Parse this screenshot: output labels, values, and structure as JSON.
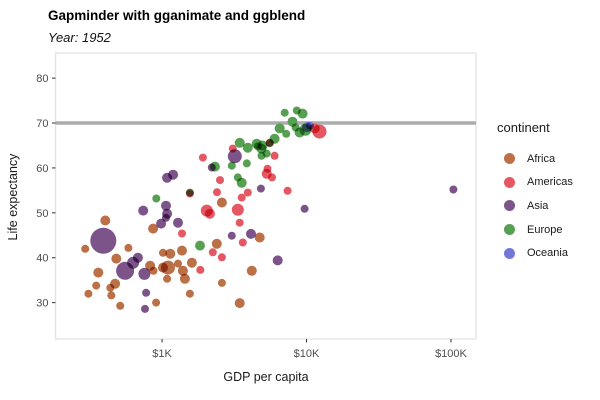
{
  "title": "Gapminder with gganimate and ggblend",
  "subtitle": "Year: 1952",
  "colors": {
    "africa": "#BC7048",
    "americas": "#E45763",
    "asia": "#7C548A",
    "europe": "#57A052",
    "oceania": "#7277D8",
    "reference_line": "#ACACAC",
    "panel_border": "#E2E2E2",
    "tick_mark": "#333333",
    "tick_label": "#4D4D4D"
  },
  "chart_data": {
    "type": "scatter",
    "title": "Gapminder with gganimate and ggblend",
    "subtitle": "Year: 1952",
    "xlabel": "GDP per capita",
    "ylabel": "Life expectancy",
    "x_scale": "log10",
    "xlim": [
      183,
      149000
    ],
    "ylim": [
      21.9,
      85.6
    ],
    "x_ticks": [
      {
        "value": 1000,
        "label": "$1K"
      },
      {
        "value": 10000,
        "label": "$10K"
      },
      {
        "value": 100000,
        "label": "$100K"
      }
    ],
    "y_ticks": [
      30,
      40,
      50,
      60,
      70,
      80
    ],
    "reference_line_y": 70,
    "grid": false,
    "point_blend": "multiply",
    "legend": {
      "title": "continent",
      "position": "right",
      "items": [
        {
          "label": "Africa",
          "color": "#BC7048"
        },
        {
          "label": "Americas",
          "color": "#E45763"
        },
        {
          "label": "Asia",
          "color": "#7C548A"
        },
        {
          "label": "Europe",
          "color": "#57A052"
        },
        {
          "label": "Oceania",
          "color": "#7277D8"
        }
      ]
    },
    "series": [
      {
        "name": "Africa",
        "color": "#BC7048",
        "points": [
          [
            405,
            48.3,
            5
          ],
          [
            294,
            42,
            4
          ],
          [
            362,
            36.7,
            5
          ],
          [
            482,
            39.8,
            5
          ],
          [
            585,
            42.2,
            4
          ],
          [
            826,
            38.2,
            5
          ],
          [
            872,
            37.1,
            4
          ],
          [
            1016,
            37.8,
            5
          ],
          [
            350,
            33.8,
            4
          ],
          [
            473,
            34.2,
            5
          ],
          [
            445,
            31.6,
            4
          ],
          [
            513,
            29.3,
            4
          ],
          [
            910,
            30,
            4
          ],
          [
            309,
            32,
            4
          ],
          [
            867,
            46.5,
            5
          ],
          [
            1140,
            40.9,
            5
          ],
          [
            1016,
            41.1,
            4
          ],
          [
            1100,
            37.8,
            7
          ],
          [
            1395,
            37.1,
            5
          ],
          [
            1610,
            38.9,
            5
          ],
          [
            1440,
            35.3,
            5
          ],
          [
            1084,
            35.3,
            4
          ],
          [
            1560,
            32,
            4
          ],
          [
            2595,
            52.3,
            5
          ],
          [
            2394,
            43.1,
            5
          ],
          [
            1374,
            41.6,
            5
          ],
          [
            2595,
            34.4,
            4
          ],
          [
            3450,
            29.9,
            5
          ],
          [
            4180,
            37.1,
            5
          ],
          [
            4740,
            44.5,
            5
          ],
          [
            1290,
            38.7,
            4
          ],
          [
            438,
            33.3,
            4
          ]
        ]
      },
      {
        "name": "Americas",
        "color": "#E45763",
        "points": [
          [
            12300,
            68.1,
            7
          ],
          [
            11400,
            68.8,
            5
          ],
          [
            3090,
            64.3,
            4
          ],
          [
            1918,
            62.3,
            4
          ],
          [
            6010,
            62.7,
            4
          ],
          [
            5300,
            58.7,
            5
          ],
          [
            7400,
            54.9,
            4
          ],
          [
            3920,
            54.5,
            4
          ],
          [
            3560,
            53.4,
            4
          ],
          [
            3345,
            50.7,
            6
          ],
          [
            2145,
            49.8,
            5
          ],
          [
            2040,
            50.5,
            6
          ],
          [
            3450,
            47.8,
            4
          ],
          [
            3620,
            43.4,
            4
          ],
          [
            2245,
            41.2,
            4
          ],
          [
            2595,
            40.1,
            4
          ],
          [
            1560,
            54.3,
            4
          ],
          [
            1375,
            45.4,
            4
          ],
          [
            5560,
            65.6,
            4
          ],
          [
            5370,
            59.8,
            4
          ],
          [
            1840,
            37.3,
            4
          ],
          [
            2520,
            57.3,
            4
          ],
          [
            5770,
            57.9,
            4
          ],
          [
            2400,
            54.6,
            4
          ]
        ]
      },
      {
        "name": "Asia",
        "color": "#7C548A",
        "points": [
          [
            392,
            43.8,
            13
          ],
          [
            555,
            37.1,
            9
          ],
          [
            740,
            50.5,
            5
          ],
          [
            1065,
            51.6,
            5
          ],
          [
            985,
            47.6,
            5
          ],
          [
            1065,
            48.9,
            4
          ],
          [
            630,
            38.9,
            6
          ],
          [
            680,
            40,
            5
          ],
          [
            755,
            36.4,
            6
          ],
          [
            762,
            28.6,
            4
          ],
          [
            775,
            32.2,
            4
          ],
          [
            1084,
            49.8,
            5
          ],
          [
            1290,
            47.8,
            5
          ],
          [
            1084,
            57.8,
            5
          ],
          [
            1192,
            58.5,
            5
          ],
          [
            2210,
            60.1,
            4
          ],
          [
            3190,
            62.6,
            7
          ],
          [
            4130,
            45.3,
            5
          ],
          [
            3040,
            44.9,
            4
          ],
          [
            4835,
            55.4,
            4
          ],
          [
            9700,
            50.9,
            4
          ],
          [
            104000,
            55.2,
            4
          ],
          [
            6320,
            39.4,
            5
          ]
        ]
      },
      {
        "name": "Europe",
        "color": "#57A052",
        "points": [
          [
            912,
            53.2,
            4
          ],
          [
            1832,
            42.7,
            5
          ],
          [
            1560,
            54.5,
            4
          ],
          [
            3450,
            65.6,
            5
          ],
          [
            3860,
            61,
            4
          ],
          [
            3560,
            56.7,
            5
          ],
          [
            4520,
            65.4,
            5
          ],
          [
            4960,
            65,
            5
          ],
          [
            6010,
            66.5,
            5
          ],
          [
            4880,
            62.7,
            4
          ],
          [
            3920,
            64.5,
            5
          ],
          [
            3040,
            60.5,
            4
          ],
          [
            2320,
            60.3,
            5
          ],
          [
            7060,
            72.3,
            4
          ],
          [
            8560,
            72.8,
            4
          ],
          [
            9400,
            72.1,
            5
          ],
          [
            8000,
            70.3,
            5
          ],
          [
            8950,
            67.9,
            5
          ],
          [
            6520,
            68.8,
            5
          ],
          [
            9830,
            68.5,
            6
          ],
          [
            4880,
            64.3,
            5
          ],
          [
            5560,
            65.5,
            4
          ],
          [
            4600,
            64.8,
            4
          ],
          [
            5300,
            63.2,
            4
          ],
          [
            7230,
            67.6,
            4
          ],
          [
            8400,
            69,
            4
          ],
          [
            3345,
            57.9,
            4
          ]
        ]
      },
      {
        "name": "Oceania",
        "color": "#7277D8",
        "points": [
          [
            10080,
            69.1,
            5
          ],
          [
            10557,
            69.4,
            4
          ]
        ]
      }
    ]
  }
}
